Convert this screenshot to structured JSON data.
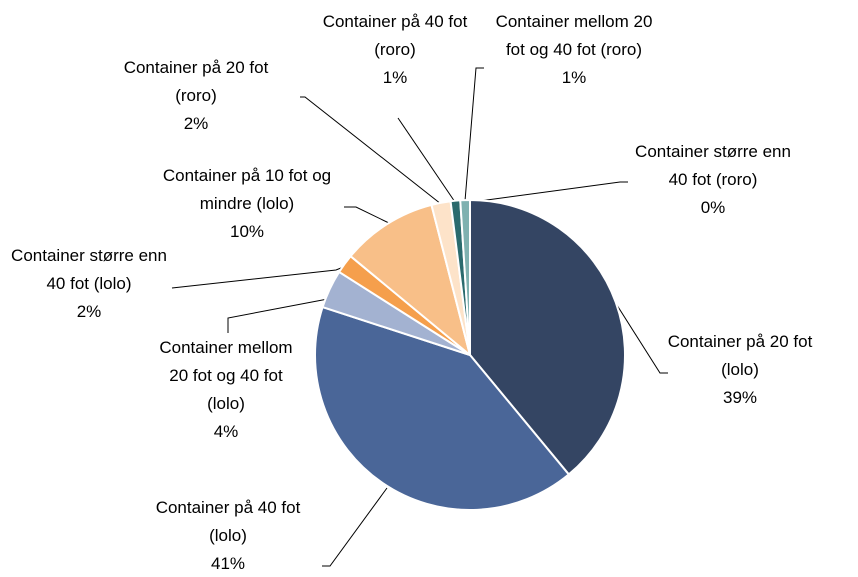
{
  "chart_data": {
    "type": "pie",
    "categories": [
      "Container på 20 fot (lolo)",
      "Container på 40 fot (lolo)",
      "Container mellom 20 fot og 40 fot (lolo)",
      "Container større enn 40 fot (lolo)",
      "Container på 10 fot og mindre (lolo)",
      "Container på 20 fot (roro)",
      "Container på 40 fot (roro)",
      "Container mellom 20 fot og 40 fot (roro)",
      "Container større enn 40 fot (roro)"
    ],
    "values": [
      39,
      41,
      4,
      2,
      10,
      2,
      1,
      1,
      0
    ],
    "value_labels": [
      "39%",
      "41%",
      "4%",
      "2%",
      "10%",
      "2%",
      "1%",
      "1%",
      "0%"
    ],
    "colors": [
      "#344563",
      "#4a6698",
      "#a3b2d1",
      "#f59f4c",
      "#f8bf88",
      "#fde3c9",
      "#2b6b6e",
      "#7fb1b0",
      "#c9dcdb"
    ]
  }
}
